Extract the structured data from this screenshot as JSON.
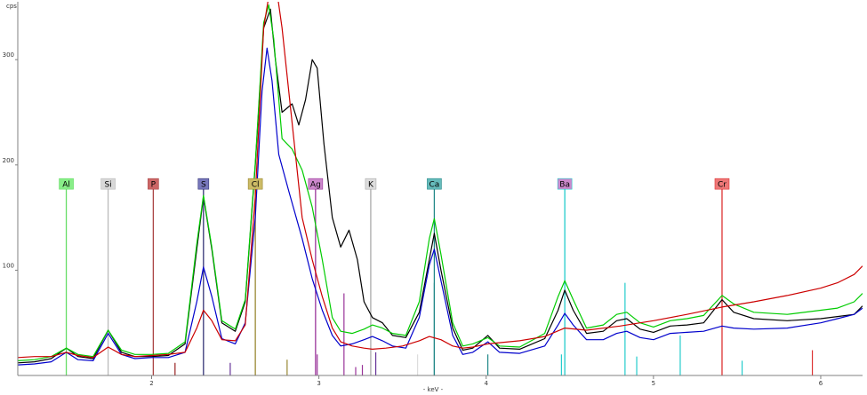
{
  "chart_data": {
    "type": "line",
    "ylabel": "cps",
    "xlabel": "- keV -",
    "xlim": [
      1.2,
      6.25
    ],
    "ylim": [
      0,
      355
    ],
    "x_ticks": [
      2,
      3,
      4,
      5,
      6
    ],
    "x_tick_labels": [
      "2",
      "3",
      "4",
      "5",
      "6"
    ],
    "y_ticks": [
      100,
      200,
      300
    ],
    "y_tick_labels": [
      "100",
      "200",
      "300"
    ],
    "element_markers": [
      {
        "label": "Al",
        "x": 1.49,
        "height": 182,
        "color": "#66dd66",
        "fill": "#88ee88"
      },
      {
        "label": "Si",
        "x": 1.74,
        "height": 182,
        "color": "#bbbbbb",
        "fill": "#d8d8d8"
      },
      {
        "label": "P",
        "x": 2.01,
        "height": 182,
        "color": "#aa4444",
        "fill": "#cc6666"
      },
      {
        "label": "S",
        "x": 2.31,
        "height": 182,
        "color": "#333377",
        "fill": "#7777bb"
      },
      {
        "label": "Cl",
        "x": 2.62,
        "height": 182,
        "color": "#998833",
        "fill": "#ccbb66"
      },
      {
        "label": "Ag",
        "x": 2.98,
        "height": 182,
        "color": "#993399",
        "fill": "#cc88cc"
      },
      {
        "label": "K",
        "x": 3.31,
        "height": 182,
        "color": "#aaaaaa",
        "fill": "#dddddd"
      },
      {
        "label": "Ca",
        "x": 3.69,
        "height": 182,
        "color": "#228888",
        "fill": "#66bbbb"
      },
      {
        "label": "Ba",
        "x": 4.47,
        "height": 182,
        "color": "#22cccc",
        "fill": "#cc88cc"
      },
      {
        "label": "Cr",
        "x": 5.41,
        "height": 182,
        "color": "#dd3333",
        "fill": "#ee7777"
      }
    ],
    "minor_lines": [
      {
        "x": 2.14,
        "height": 12,
        "color": "#992222"
      },
      {
        "x": 2.47,
        "height": 12,
        "color": "#663399"
      },
      {
        "x": 2.81,
        "height": 15,
        "color": "#998833"
      },
      {
        "x": 2.99,
        "height": 20,
        "color": "#993399"
      },
      {
        "x": 3.15,
        "height": 78,
        "color": "#993399"
      },
      {
        "x": 3.22,
        "height": 8,
        "color": "#993399"
      },
      {
        "x": 3.26,
        "height": 10,
        "color": "#993399"
      },
      {
        "x": 3.34,
        "height": 22,
        "color": "#663399"
      },
      {
        "x": 3.59,
        "height": 20,
        "color": "#dddddd"
      },
      {
        "x": 3.69,
        "height": 88,
        "color": "#228888"
      },
      {
        "x": 4.01,
        "height": 20,
        "color": "#228888"
      },
      {
        "x": 4.45,
        "height": 20,
        "color": "#22cccc"
      },
      {
        "x": 4.83,
        "height": 88,
        "color": "#22cccc"
      },
      {
        "x": 4.9,
        "height": 18,
        "color": "#22cccc"
      },
      {
        "x": 5.16,
        "height": 38,
        "color": "#22cccc"
      },
      {
        "x": 5.53,
        "height": 14,
        "color": "#22cccc"
      },
      {
        "x": 5.95,
        "height": 24,
        "color": "#dd3333"
      }
    ],
    "series": [
      {
        "color": "#000000",
        "points": [
          [
            1.2,
            12
          ],
          [
            1.3,
            13
          ],
          [
            1.4,
            16
          ],
          [
            1.49,
            26
          ],
          [
            1.56,
            18
          ],
          [
            1.65,
            16
          ],
          [
            1.74,
            43
          ],
          [
            1.82,
            22
          ],
          [
            1.9,
            18
          ],
          [
            2.0,
            18
          ],
          [
            2.1,
            19
          ],
          [
            2.2,
            30
          ],
          [
            2.27,
            120
          ],
          [
            2.31,
            170
          ],
          [
            2.36,
            120
          ],
          [
            2.42,
            50
          ],
          [
            2.5,
            42
          ],
          [
            2.56,
            70
          ],
          [
            2.62,
            200
          ],
          [
            2.67,
            330
          ],
          [
            2.71,
            348
          ],
          [
            2.74,
            300
          ],
          [
            2.78,
            250
          ],
          [
            2.84,
            258
          ],
          [
            2.88,
            238
          ],
          [
            2.92,
            262
          ],
          [
            2.96,
            300
          ],
          [
            2.99,
            292
          ],
          [
            3.03,
            220
          ],
          [
            3.08,
            150
          ],
          [
            3.13,
            122
          ],
          [
            3.18,
            138
          ],
          [
            3.23,
            110
          ],
          [
            3.27,
            70
          ],
          [
            3.32,
            55
          ],
          [
            3.38,
            50
          ],
          [
            3.44,
            38
          ],
          [
            3.52,
            36
          ],
          [
            3.6,
            60
          ],
          [
            3.66,
            110
          ],
          [
            3.69,
            135
          ],
          [
            3.73,
            100
          ],
          [
            3.8,
            45
          ],
          [
            3.86,
            24
          ],
          [
            3.92,
            26
          ],
          [
            4.01,
            38
          ],
          [
            4.08,
            26
          ],
          [
            4.2,
            25
          ],
          [
            4.35,
            35
          ],
          [
            4.43,
            62
          ],
          [
            4.47,
            81
          ],
          [
            4.52,
            62
          ],
          [
            4.6,
            40
          ],
          [
            4.7,
            42
          ],
          [
            4.78,
            52
          ],
          [
            4.84,
            54
          ],
          [
            4.92,
            44
          ],
          [
            5.0,
            41
          ],
          [
            5.1,
            47
          ],
          [
            5.2,
            48
          ],
          [
            5.3,
            50
          ],
          [
            5.41,
            72
          ],
          [
            5.48,
            60
          ],
          [
            5.6,
            54
          ],
          [
            5.8,
            52
          ],
          [
            6.0,
            54
          ],
          [
            6.1,
            56
          ],
          [
            6.2,
            58
          ],
          [
            6.25,
            66
          ]
        ]
      },
      {
        "color": "#00cc00",
        "points": [
          [
            1.2,
            14
          ],
          [
            1.3,
            15
          ],
          [
            1.4,
            18
          ],
          [
            1.49,
            26
          ],
          [
            1.56,
            20
          ],
          [
            1.65,
            18
          ],
          [
            1.74,
            43
          ],
          [
            1.82,
            24
          ],
          [
            1.9,
            20
          ],
          [
            2.0,
            20
          ],
          [
            2.1,
            21
          ],
          [
            2.2,
            32
          ],
          [
            2.27,
            125
          ],
          [
            2.31,
            171
          ],
          [
            2.36,
            122
          ],
          [
            2.42,
            52
          ],
          [
            2.5,
            44
          ],
          [
            2.56,
            72
          ],
          [
            2.62,
            202
          ],
          [
            2.67,
            335
          ],
          [
            2.7,
            352
          ],
          [
            2.73,
            320
          ],
          [
            2.78,
            225
          ],
          [
            2.84,
            215
          ],
          [
            2.9,
            195
          ],
          [
            2.96,
            160
          ],
          [
            3.02,
            110
          ],
          [
            3.08,
            55
          ],
          [
            3.13,
            42
          ],
          [
            3.2,
            40
          ],
          [
            3.27,
            44
          ],
          [
            3.32,
            48
          ],
          [
            3.38,
            45
          ],
          [
            3.44,
            40
          ],
          [
            3.52,
            38
          ],
          [
            3.6,
            70
          ],
          [
            3.66,
            130
          ],
          [
            3.69,
            149
          ],
          [
            3.73,
            115
          ],
          [
            3.8,
            50
          ],
          [
            3.86,
            28
          ],
          [
            3.92,
            30
          ],
          [
            4.01,
            36
          ],
          [
            4.08,
            28
          ],
          [
            4.2,
            27
          ],
          [
            4.35,
            40
          ],
          [
            4.43,
            75
          ],
          [
            4.47,
            90
          ],
          [
            4.52,
            72
          ],
          [
            4.6,
            45
          ],
          [
            4.7,
            48
          ],
          [
            4.78,
            58
          ],
          [
            4.84,
            60
          ],
          [
            4.92,
            50
          ],
          [
            5.0,
            46
          ],
          [
            5.1,
            52
          ],
          [
            5.2,
            54
          ],
          [
            5.3,
            57
          ],
          [
            5.41,
            76
          ],
          [
            5.48,
            68
          ],
          [
            5.6,
            60
          ],
          [
            5.8,
            58
          ],
          [
            6.0,
            62
          ],
          [
            6.1,
            64
          ],
          [
            6.2,
            70
          ],
          [
            6.25,
            78
          ]
        ]
      },
      {
        "color": "#0000cc",
        "points": [
          [
            1.2,
            10
          ],
          [
            1.3,
            11
          ],
          [
            1.4,
            13
          ],
          [
            1.49,
            22
          ],
          [
            1.56,
            15
          ],
          [
            1.65,
            14
          ],
          [
            1.74,
            40
          ],
          [
            1.82,
            20
          ],
          [
            1.9,
            16
          ],
          [
            2.0,
            17
          ],
          [
            2.1,
            17
          ],
          [
            2.2,
            22
          ],
          [
            2.27,
            70
          ],
          [
            2.31,
            103
          ],
          [
            2.36,
            75
          ],
          [
            2.42,
            35
          ],
          [
            2.5,
            30
          ],
          [
            2.56,
            50
          ],
          [
            2.62,
            150
          ],
          [
            2.66,
            270
          ],
          [
            2.69,
            311
          ],
          [
            2.72,
            280
          ],
          [
            2.76,
            210
          ],
          [
            2.82,
            175
          ],
          [
            2.9,
            130
          ],
          [
            2.96,
            92
          ],
          [
            3.02,
            62
          ],
          [
            3.08,
            38
          ],
          [
            3.13,
            28
          ],
          [
            3.2,
            30
          ],
          [
            3.27,
            34
          ],
          [
            3.32,
            37
          ],
          [
            3.38,
            33
          ],
          [
            3.44,
            28
          ],
          [
            3.52,
            26
          ],
          [
            3.6,
            55
          ],
          [
            3.66,
            105
          ],
          [
            3.69,
            120
          ],
          [
            3.73,
            90
          ],
          [
            3.8,
            38
          ],
          [
            3.86,
            20
          ],
          [
            3.92,
            22
          ],
          [
            4.01,
            32
          ],
          [
            4.08,
            22
          ],
          [
            4.2,
            21
          ],
          [
            4.35,
            28
          ],
          [
            4.43,
            48
          ],
          [
            4.47,
            59
          ],
          [
            4.52,
            48
          ],
          [
            4.6,
            34
          ],
          [
            4.7,
            34
          ],
          [
            4.78,
            40
          ],
          [
            4.84,
            42
          ],
          [
            4.92,
            36
          ],
          [
            5.0,
            34
          ],
          [
            5.1,
            40
          ],
          [
            5.2,
            41
          ],
          [
            5.3,
            42
          ],
          [
            5.41,
            47
          ],
          [
            5.48,
            45
          ],
          [
            5.6,
            44
          ],
          [
            5.8,
            45
          ],
          [
            6.0,
            50
          ],
          [
            6.1,
            54
          ],
          [
            6.2,
            58
          ],
          [
            6.25,
            64
          ]
        ]
      },
      {
        "color": "#cc0000",
        "points": [
          [
            1.2,
            17
          ],
          [
            1.3,
            18
          ],
          [
            1.4,
            18
          ],
          [
            1.49,
            22
          ],
          [
            1.56,
            19
          ],
          [
            1.65,
            17
          ],
          [
            1.74,
            27
          ],
          [
            1.82,
            20
          ],
          [
            1.9,
            18
          ],
          [
            2.0,
            19
          ],
          [
            2.1,
            20
          ],
          [
            2.2,
            22
          ],
          [
            2.27,
            45
          ],
          [
            2.31,
            62
          ],
          [
            2.36,
            52
          ],
          [
            2.42,
            34
          ],
          [
            2.5,
            33
          ],
          [
            2.56,
            48
          ],
          [
            2.62,
            170
          ],
          [
            2.67,
            330
          ],
          [
            2.71,
            370
          ],
          [
            2.74,
            375
          ],
          [
            2.78,
            330
          ],
          [
            2.84,
            240
          ],
          [
            2.9,
            150
          ],
          [
            2.96,
            110
          ],
          [
            3.02,
            75
          ],
          [
            3.08,
            45
          ],
          [
            3.13,
            32
          ],
          [
            3.2,
            28
          ],
          [
            3.27,
            26
          ],
          [
            3.32,
            25
          ],
          [
            3.4,
            26
          ],
          [
            3.5,
            28
          ],
          [
            3.6,
            33
          ],
          [
            3.66,
            37
          ],
          [
            3.73,
            34
          ],
          [
            3.8,
            28
          ],
          [
            3.86,
            26
          ],
          [
            3.92,
            27
          ],
          [
            4.01,
            30
          ],
          [
            4.2,
            33
          ],
          [
            4.35,
            37
          ],
          [
            4.47,
            45
          ],
          [
            4.6,
            43
          ],
          [
            4.8,
            47
          ],
          [
            5.0,
            52
          ],
          [
            5.2,
            58
          ],
          [
            5.41,
            65
          ],
          [
            5.6,
            70
          ],
          [
            5.8,
            76
          ],
          [
            6.0,
            83
          ],
          [
            6.1,
            88
          ],
          [
            6.2,
            96
          ],
          [
            6.25,
            104
          ]
        ]
      }
    ]
  }
}
